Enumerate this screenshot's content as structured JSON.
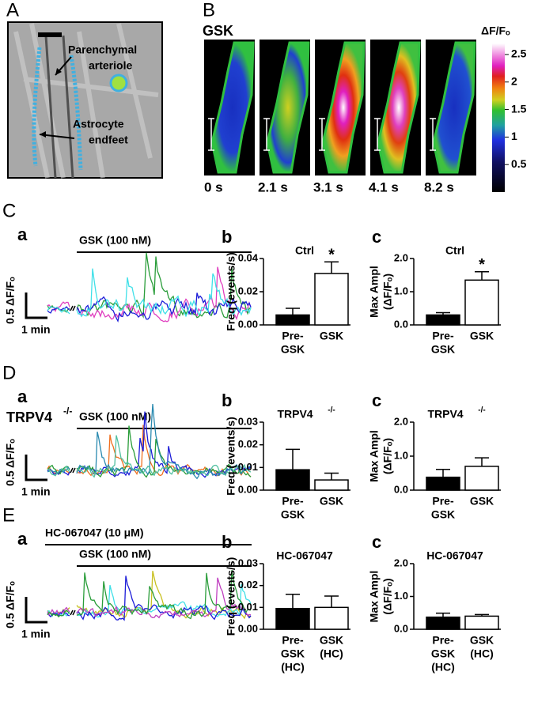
{
  "panel_a": {
    "label": "A",
    "annotations": [
      [
        "Parenchymal",
        "arteriole"
      ],
      [
        "Astrocyte",
        "endfeet"
      ]
    ]
  },
  "panel_b": {
    "label": "B",
    "condition": "GSK",
    "time_labels": [
      "0 s",
      "2.1 s",
      "3.1 s",
      "4.1 s",
      "8.2 s"
    ],
    "colorbar": {
      "title": "ΔF/Fₒ",
      "lim": [
        0,
        2.7
      ],
      "ticks": [
        2.5,
        2,
        1.5,
        1,
        0.5
      ]
    }
  },
  "traces": [
    {
      "label": "C",
      "sublabel": "a",
      "treatments": [
        "GSK (100 nM)"
      ],
      "scale_y": "0.5 ΔF/Fₒ",
      "scale_x": "1 min",
      "colors": [
        "#2a9d3a",
        "#e040c0",
        "#1c1cd8",
        "#40e0e8"
      ]
    },
    {
      "label": "D",
      "sublabel": "a",
      "genotype": "TRPV4",
      "genotype_sup": "-/-",
      "treatments": [
        "GSK (100 nM)"
      ],
      "scale_y": "0.5 ΔF/Fₒ",
      "scale_x": "1 min",
      "colors": [
        "#f07020",
        "#1c1cd8",
        "#2a9d3a",
        "#2a8ab0",
        "#50c0a0"
      ]
    },
    {
      "label": "E",
      "sublabel": "a",
      "treatments": [
        "HC-067047 (10 μM)",
        "GSK (100 nM)"
      ],
      "scale_y": "0.5 ΔF/Fₒ",
      "scale_x": "1 min",
      "colors": [
        "#c8c020",
        "#40e0e8",
        "#1c1cd8",
        "#c040c0",
        "#2a9d3a"
      ]
    }
  ],
  "chart_data": [
    {
      "type": "bar",
      "label": "b",
      "title": "Ctrl",
      "ylabel": [
        "Freq (events/s)"
      ],
      "categories": [
        [
          "Pre-",
          "GSK"
        ],
        [
          "GSK"
        ]
      ],
      "values": [
        0.006,
        0.031
      ],
      "errors": [
        0.004,
        0.007
      ],
      "colors": [
        "#000000",
        "#ffffff"
      ],
      "significance": [
        null,
        "*"
      ],
      "ylim": [
        0,
        0.04
      ],
      "yticks": [
        {
          "value": 0,
          "label": "0.00"
        },
        {
          "value": 0.02,
          "label": "0.02"
        },
        {
          "value": 0.04,
          "label": "0.04"
        }
      ]
    },
    {
      "type": "bar",
      "label": "c",
      "title": "Ctrl",
      "ylabel": [
        "Max Ampl",
        "(ΔF/Fₒ)"
      ],
      "categories": [
        [
          "Pre-",
          "GSK"
        ],
        [
          "GSK"
        ]
      ],
      "values": [
        0.3,
        1.35
      ],
      "errors": [
        0.07,
        0.25
      ],
      "colors": [
        "#000000",
        "#ffffff"
      ],
      "significance": [
        null,
        "*"
      ],
      "ylim": [
        0,
        2
      ],
      "yticks": [
        {
          "value": 0,
          "label": "0.0"
        },
        {
          "value": 1,
          "label": "1.0"
        },
        {
          "value": 2,
          "label": "2.0"
        }
      ]
    },
    {
      "type": "bar",
      "label": "b",
      "title": "TRPV4",
      "title_sup": "-/-",
      "ylabel": [
        "Freq (events/s)"
      ],
      "categories": [
        [
          "Pre-",
          "GSK"
        ],
        [
          "GSK"
        ]
      ],
      "values": [
        0.009,
        0.0045
      ],
      "errors": [
        0.009,
        0.003
      ],
      "colors": [
        "#000000",
        "#ffffff"
      ],
      "ylim": [
        0,
        0.03
      ],
      "yticks": [
        {
          "value": 0,
          "label": "0.00"
        },
        {
          "value": 0.01,
          "label": "0.01"
        },
        {
          "value": 0.02,
          "label": "0.02"
        },
        {
          "value": 0.03,
          "label": "0.03"
        }
      ]
    },
    {
      "type": "bar",
      "label": "c",
      "title": "TRPV4",
      "title_sup": "-/-",
      "ylabel": [
        "Max Ampl",
        "(ΔF/Fₒ)"
      ],
      "categories": [
        [
          "Pre-",
          "GSK"
        ],
        [
          "GSK"
        ]
      ],
      "values": [
        0.38,
        0.7
      ],
      "errors": [
        0.23,
        0.25
      ],
      "colors": [
        "#000000",
        "#ffffff"
      ],
      "ylim": [
        0,
        2
      ],
      "yticks": [
        {
          "value": 0,
          "label": "0.0"
        },
        {
          "value": 1,
          "label": "1.0"
        },
        {
          "value": 2,
          "label": "2.0"
        }
      ]
    },
    {
      "type": "bar",
      "label": "b",
      "title": "HC-067047",
      "ylabel": [
        "Freq (events/s)"
      ],
      "categories": [
        [
          "Pre-",
          "GSK",
          "(HC)"
        ],
        [
          "GSK",
          "(HC)"
        ]
      ],
      "values": [
        0.0095,
        0.01
      ],
      "errors": [
        0.0065,
        0.0052
      ],
      "colors": [
        "#000000",
        "#ffffff"
      ],
      "ylim": [
        0,
        0.03
      ],
      "yticks": [
        {
          "value": 0,
          "label": "0.00"
        },
        {
          "value": 0.01,
          "label": "0.01"
        },
        {
          "value": 0.02,
          "label": "0.02"
        },
        {
          "value": 0.03,
          "label": "0.03"
        }
      ]
    },
    {
      "type": "bar",
      "label": "c",
      "title": "HC-067047",
      "ylabel": [
        "Max Ampl",
        "(ΔF/Fₒ)"
      ],
      "categories": [
        [
          "Pre-",
          "GSK",
          "(HC)"
        ],
        [
          "GSK",
          "(HC)"
        ]
      ],
      "values": [
        0.37,
        0.4
      ],
      "errors": [
        0.12,
        0.05
      ],
      "colors": [
        "#000000",
        "#ffffff"
      ],
      "ylim": [
        0,
        2
      ],
      "yticks": [
        {
          "value": 0,
          "label": "0.0"
        },
        {
          "value": 1,
          "label": "1.0"
        },
        {
          "value": 2,
          "label": "2.0"
        }
      ]
    }
  ]
}
